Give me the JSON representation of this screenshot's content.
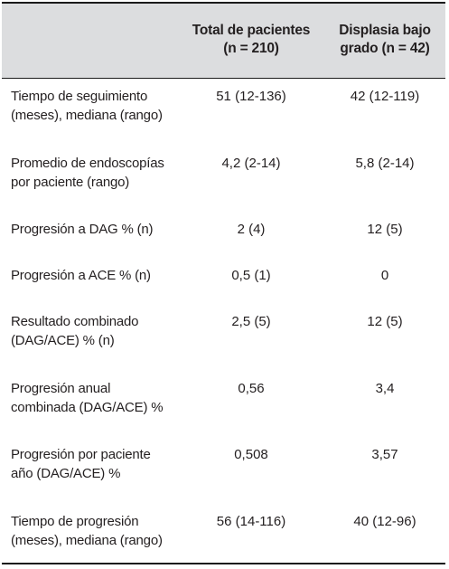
{
  "header": {
    "col1": [
      "Total de pacientes",
      "(n = 210)"
    ],
    "col2": [
      "Displasia bajo",
      "grado (n = 42)"
    ]
  },
  "rows": [
    {
      "label": [
        "Tiempo de seguimiento",
        "(meses), mediana (rango)"
      ],
      "total": "51 (12-136)",
      "displasia": "42 (12-119)"
    },
    {
      "label": [
        "Promedio de endoscopías",
        "por paciente (rango)"
      ],
      "total": "4,2 (2-14)",
      "displasia": "5,8 (2-14)"
    },
    {
      "label": [
        "Progresión a DAG % (n)"
      ],
      "total": "2 (4)",
      "displasia": "12 (5)"
    },
    {
      "label": [
        "Progresión a ACE % (n)"
      ],
      "total": "0,5 (1)",
      "displasia": "0"
    },
    {
      "label": [
        "Resultado combinado",
        "(DAG/ACE) % (n)"
      ],
      "total": "2,5 (5)",
      "displasia": "12 (5)"
    },
    {
      "label": [
        "Progresión anual",
        "combinada (DAG/ACE) %"
      ],
      "total": "0,56",
      "displasia": "3,4"
    },
    {
      "label": [
        "Progresión por paciente",
        "año (DAG/ACE) %"
      ],
      "total": "0,508",
      "displasia": "3,57"
    },
    {
      "label": [
        "Tiempo de progresión",
        "(meses), mediana (rango)"
      ],
      "total": "56 (14-116)",
      "displasia": "40 (12-96)"
    }
  ]
}
